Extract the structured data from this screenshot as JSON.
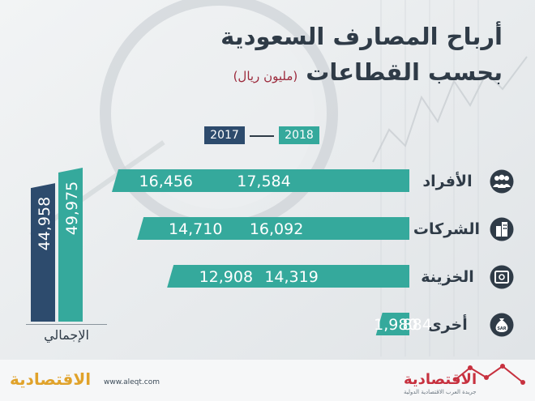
{
  "title": {
    "line1": "أرباح المصارف السعودية",
    "line2": "بحسب القطاعات",
    "unit": "(مليون ريال)"
  },
  "legend": {
    "year_2018": "2018",
    "year_2017": "2017",
    "color_2018": "#35a99c",
    "color_2017": "#2d4b6d"
  },
  "chart_data": [
    {
      "type": "bar",
      "orientation": "horizontal",
      "categories": [
        "الأفراد",
        "الشركات",
        "الخزينة",
        "أخرى"
      ],
      "icons": [
        "people-icon",
        "buildings-icon",
        "safe-icon",
        "money-bag-icon"
      ],
      "series": [
        {
          "name": "2018",
          "values": [
            17584,
            16092,
            14319,
            1980
          ],
          "labels": [
            "17,584",
            "16,092",
            "14,319",
            "1,980"
          ]
        },
        {
          "name": "2017",
          "values": [
            16456,
            14710,
            12908,
            884
          ],
          "labels": [
            "16,456",
            "14,710",
            "12,908",
            "884"
          ]
        }
      ]
    },
    {
      "type": "bar",
      "orientation": "vertical",
      "categories": [
        "الإجمالي"
      ],
      "series": [
        {
          "name": "2018",
          "values": [
            49975
          ],
          "labels": [
            "49,975"
          ]
        },
        {
          "name": "2017",
          "values": [
            44958
          ],
          "labels": [
            "44,958"
          ]
        }
      ]
    }
  ],
  "footer": {
    "url": "www.aleqt.com",
    "logo_text": "الاقتصادية",
    "logo_sub": "جريدة العرب الاقتصادية الدولية"
  }
}
